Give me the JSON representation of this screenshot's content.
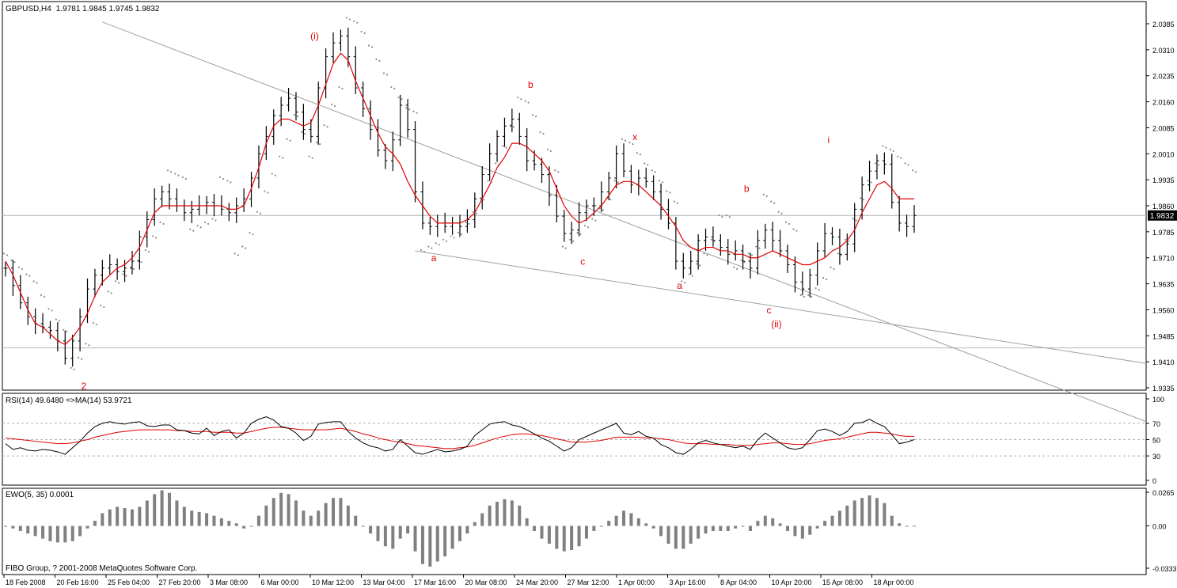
{
  "chart_data": [
    {
      "type": "line",
      "panel": "price",
      "title": "GBPUSD,H4",
      "ohlc_readout": "1.9781 1.9845 1.9745 1.9832",
      "last_price": "1.9832",
      "y_ticks": [
        "2.0385",
        "2.0310",
        "2.0235",
        "2.0160",
        "2.0085",
        "2.0010",
        "1.9935",
        "1.9860",
        "1.9785",
        "1.9710",
        "1.9635",
        "1.9560",
        "1.9485",
        "1.9410",
        "1.9335"
      ],
      "ylim": [
        1.9335,
        2.0385
      ],
      "x_ticks": [
        "18 Feb 2008",
        "20 Feb 16:00",
        "25 Feb 04:00",
        "27 Feb 20:00",
        "3 Mar 08:00",
        "6 Mar 00:00",
        "10 Mar 12:00",
        "13 Mar 04:00",
        "17 Mar 16:00",
        "20 Mar 08:00",
        "24 Mar 20:00",
        "27 Mar 12:00",
        "1 Apr 00:00",
        "3 Apr 16:00",
        "8 Apr 04:00",
        "10 Apr 20:00",
        "15 Apr 08:00",
        "18 Apr 00:00"
      ],
      "series": [
        {
          "name": "",
          "style": "close",
          "values": [
            1.968,
            1.963,
            1.958,
            1.954,
            1.952,
            1.951,
            1.95,
            1.947,
            1.942,
            1.947,
            1.954,
            1.962,
            1.966,
            1.968,
            1.969,
            1.967,
            1.968,
            1.97,
            1.977,
            1.982,
            1.988,
            1.99,
            1.988,
            1.986,
            1.984,
            1.985,
            1.986,
            1.987,
            1.986,
            1.985,
            1.984,
            1.986,
            1.988,
            1.994,
            2.001,
            2.006,
            2.012,
            2.015,
            2.017,
            2.013,
            2.008,
            2.006,
            2.02,
            2.029,
            2.033,
            2.035,
            2.029,
            2.02,
            2.014,
            2.008,
            2.002,
            1.999,
            2.005,
            2.015,
            2.008,
            1.99,
            1.981,
            1.98,
            1.981,
            1.98,
            1.981,
            1.98,
            1.982,
            1.988,
            1.995,
            2.001,
            2.006,
            2.009,
            2.011,
            2.006,
            1.999,
            1.998,
            1.995,
            1.989,
            1.983,
            1.978,
            1.979,
            1.984,
            1.986,
            1.986,
            1.99,
            1.994,
            2.001,
            1.996,
            1.992,
            1.994,
            1.993,
            1.99,
            1.985,
            1.981,
            1.97,
            1.968,
            1.97,
            1.976,
            1.977,
            1.976,
            1.974,
            1.972,
            1.973,
            1.97,
            1.968,
            1.976,
            1.979,
            1.976,
            1.973,
            1.969,
            1.964,
            1.962,
            1.966,
            1.973,
            1.978,
            1.977,
            1.972,
            1.975,
            1.985,
            1.992,
            1.996,
            1.999,
            1.998,
            1.987,
            1.981,
            1.98,
            1.9832
          ]
        },
        {
          "name": "",
          "style": "ma-red",
          "values": [
            1.97,
            1.966,
            1.961,
            1.956,
            1.952,
            1.951,
            1.949,
            1.947,
            1.946,
            1.948,
            1.951,
            1.955,
            1.96,
            1.964,
            1.966,
            1.968,
            1.969,
            1.971,
            1.974,
            1.979,
            1.984,
            1.986,
            1.986,
            1.986,
            1.986,
            1.986,
            1.986,
            1.986,
            1.986,
            1.986,
            1.985,
            1.985,
            1.986,
            1.991,
            1.997,
            2.004,
            2.009,
            2.011,
            2.011,
            2.01,
            2.009,
            2.01,
            2.015,
            2.021,
            2.027,
            2.03,
            2.028,
            2.022,
            2.017,
            2.012,
            2.007,
            2.003,
            2.001,
            1.998,
            1.993,
            1.989,
            1.986,
            1.983,
            1.981,
            1.981,
            1.981,
            1.981,
            1.982,
            1.984,
            1.988,
            1.992,
            1.997,
            2.0,
            2.004,
            2.004,
            2.003,
            2.001,
            1.999,
            1.996,
            1.991,
            1.986,
            1.983,
            1.981,
            1.982,
            1.984,
            1.986,
            1.989,
            1.992,
            1.993,
            1.993,
            1.992,
            1.99,
            1.988,
            1.986,
            1.983,
            1.98,
            1.976,
            1.974,
            1.973,
            1.974,
            1.974,
            1.973,
            1.973,
            1.972,
            1.972,
            1.971,
            1.971,
            1.972,
            1.973,
            1.972,
            1.971,
            1.97,
            1.969,
            1.969,
            1.97,
            1.971,
            1.973,
            1.974,
            1.976,
            1.979,
            1.984,
            1.988,
            1.992,
            1.993,
            1.991,
            1.988,
            1.988,
            1.988
          ]
        },
        {
          "name": "",
          "style": "parabolic-sar",
          "values": [
            1.972,
            1.97,
            1.968,
            1.966,
            1.964,
            1.96,
            1.956,
            1.953,
            1.95,
            1.939,
            1.942,
            1.946,
            1.952,
            1.957,
            1.961,
            1.964,
            1.966,
            1.968,
            1.97,
            1.973,
            1.977,
            1.981,
            1.996,
            1.995,
            1.994,
            1.979,
            1.98,
            1.981,
            1.982,
            1.994,
            1.993,
            1.972,
            1.974,
            1.978,
            1.984,
            1.99,
            1.995,
            2.0,
            2.005,
            2.012,
            2.007,
            2.0,
            2.004,
            2.009,
            2.015,
            2.02,
            2.04,
            2.039,
            2.036,
            2.032,
            2.028,
            2.024,
            2.02,
            2.017,
            2.014,
            2.013,
            1.973,
            1.974,
            1.975,
            1.976,
            1.977,
            1.978,
            1.981,
            1.984,
            1.988,
            1.993,
            1.998,
            2.003,
            2.009,
            2.017,
            2.016,
            2.012,
            2.007,
            2.002,
            1.996,
            1.974,
            1.976,
            1.978,
            1.98,
            1.982,
            1.985,
            1.988,
            1.993,
            2.005,
            2.004,
            2.001,
            1.998,
            1.996,
            1.993,
            1.99,
            1.987,
            1.964,
            1.966,
            1.969,
            1.972,
            1.976,
            1.983,
            1.983,
            1.968,
            1.97,
            1.972,
            1.974,
            1.989,
            1.987,
            1.984,
            1.981,
            1.979,
            1.96,
            1.96,
            1.962,
            1.965,
            1.968,
            1.972,
            1.976,
            1.982,
            1.988,
            1.993,
            1.998,
            2.003,
            2.002,
            2.0,
            1.998,
            1.996
          ]
        }
      ],
      "trend_lines": [
        {
          "from": [
            13,
            2.039
          ],
          "to": [
            120,
            1.951
          ]
        },
        {
          "from": [
            55,
            1.973
          ],
          "to": [
            120,
            1.9515
          ]
        }
      ],
      "horizontal_lines": [
        1.9832,
        1.945
      ],
      "wave_labels": [
        {
          "text": "(i)",
          "at": [
            41.5,
            2.034
          ]
        },
        {
          "text": "2",
          "at": [
            10.5,
            1.933
          ]
        },
        {
          "text": "a",
          "at": [
            57.5,
            1.97
          ]
        },
        {
          "text": "b",
          "at": [
            70.5,
            2.02
          ]
        },
        {
          "text": "c",
          "at": [
            77.5,
            1.969
          ]
        },
        {
          "text": "x",
          "at": [
            84.5,
            2.005
          ]
        },
        {
          "text": "a",
          "at": [
            90.5,
            1.962
          ]
        },
        {
          "text": "b",
          "at": [
            99.5,
            1.99
          ]
        },
        {
          "text": "c",
          "at": [
            102.5,
            1.955
          ]
        },
        {
          "text": "(ii)",
          "at": [
            103.5,
            1.951
          ]
        },
        {
          "text": "i",
          "at": [
            110.5,
            2.004
          ]
        }
      ]
    },
    {
      "type": "line",
      "panel": "rsi",
      "title": "RSI(14) 49.6480 =>MA(14) 53.9721",
      "y_ticks": [
        "100",
        "70",
        "50",
        "30",
        "0"
      ],
      "ylim": [
        0,
        100
      ],
      "series": [
        {
          "name": "RSI(14)",
          "values": [
            45,
            38,
            40,
            37,
            36,
            38,
            37,
            35,
            32,
            40,
            48,
            58,
            66,
            70,
            72,
            70,
            69,
            71,
            72,
            67,
            66,
            68,
            68,
            62,
            61,
            58,
            57,
            64,
            55,
            60,
            62,
            52,
            58,
            70,
            75,
            78,
            74,
            66,
            64,
            58,
            49,
            54,
            69,
            71,
            72,
            72,
            60,
            52,
            46,
            42,
            40,
            36,
            38,
            50,
            42,
            34,
            32,
            35,
            38,
            35,
            36,
            38,
            42,
            55,
            62,
            69,
            71,
            72,
            68,
            66,
            62,
            57,
            52,
            48,
            42,
            36,
            40,
            50,
            54,
            58,
            62,
            66,
            70,
            58,
            56,
            60,
            54,
            52,
            44,
            40,
            34,
            32,
            38,
            46,
            49,
            46,
            44,
            42,
            40,
            42,
            38,
            50,
            58,
            52,
            46,
            40,
            38,
            40,
            50,
            61,
            63,
            60,
            55,
            60,
            70,
            71,
            75,
            70,
            66,
            56,
            45,
            47,
            50
          ]
        },
        {
          "name": "MA(14)",
          "values": [
            52,
            51,
            50,
            49,
            48,
            47,
            46,
            45,
            45,
            46,
            48,
            50,
            53,
            55,
            57,
            59,
            60,
            61,
            62,
            62,
            62,
            62,
            62,
            61,
            61,
            60,
            60,
            60,
            59,
            59,
            59,
            58,
            58,
            60,
            62,
            64,
            65,
            65,
            64,
            63,
            62,
            62,
            62,
            62,
            63,
            64,
            62,
            60,
            57,
            55,
            52,
            50,
            48,
            47,
            45,
            43,
            42,
            41,
            40,
            39,
            39,
            40,
            41,
            43,
            46,
            49,
            52,
            54,
            56,
            57,
            57,
            56,
            55,
            53,
            51,
            49,
            47,
            47,
            47,
            48,
            49,
            51,
            53,
            53,
            53,
            53,
            52,
            52,
            51,
            50,
            48,
            46,
            45,
            45,
            45,
            44,
            44,
            44,
            43,
            43,
            43,
            44,
            45,
            46,
            46,
            45,
            44,
            44,
            45,
            47,
            49,
            50,
            51,
            53,
            55,
            57,
            59,
            59,
            58,
            57,
            55,
            54,
            54
          ]
        }
      ]
    },
    {
      "type": "bar",
      "panel": "ewo",
      "title": "EWO(5, 35) 0.0001",
      "y_ticks": [
        "0.0265",
        "0.00",
        "-0.0333"
      ],
      "ylim": [
        -0.0333,
        0.0265
      ],
      "values": [
        0.0,
        -0.002,
        -0.004,
        -0.006,
        -0.008,
        -0.01,
        -0.012,
        -0.013,
        -0.013,
        -0.012,
        -0.008,
        -0.002,
        0.004,
        0.01,
        0.013,
        0.015,
        0.014,
        0.013,
        0.015,
        0.02,
        0.025,
        0.028,
        0.026,
        0.02,
        0.015,
        0.012,
        0.011,
        0.01,
        0.008,
        0.006,
        0.004,
        0.002,
        -0.002,
        0.0,
        0.008,
        0.016,
        0.022,
        0.026,
        0.025,
        0.02,
        0.012,
        0.008,
        0.012,
        0.018,
        0.022,
        0.022,
        0.016,
        0.008,
        0.0,
        -0.006,
        -0.012,
        -0.016,
        -0.018,
        -0.01,
        -0.006,
        -0.02,
        -0.03,
        -0.032,
        -0.028,
        -0.024,
        -0.018,
        -0.012,
        -0.006,
        0.003,
        0.01,
        0.016,
        0.019,
        0.021,
        0.02,
        0.016,
        0.006,
        -0.004,
        -0.01,
        -0.014,
        -0.018,
        -0.02,
        -0.019,
        -0.016,
        -0.01,
        -0.004,
        0.0,
        0.004,
        0.008,
        0.012,
        0.01,
        0.006,
        0.002,
        -0.002,
        -0.008,
        -0.014,
        -0.018,
        -0.018,
        -0.014,
        -0.01,
        -0.006,
        -0.004,
        -0.004,
        -0.004,
        -0.002,
        0.0,
        -0.004,
        0.004,
        0.008,
        0.006,
        0.002,
        -0.004,
        -0.008,
        -0.01,
        -0.007,
        -0.002,
        0.004,
        0.008,
        0.012,
        0.016,
        0.02,
        0.022,
        0.024,
        0.022,
        0.018,
        0.008,
        0.002,
        0.0,
        0.0001
      ]
    }
  ],
  "footer": {
    "copyright": "FIBO Group, ? 2001-2008 MetaQuotes Software Corp."
  },
  "colors": {
    "price_bars": "#000000",
    "ma": "#e00000",
    "sar": "#8c8c8c",
    "trendline": "#a0a0a0",
    "wave_labels": "#e00000",
    "rsi": "#000000",
    "rsi_ma": "#e00000",
    "ewo": "#808080",
    "levels": "#b4b4b4"
  }
}
